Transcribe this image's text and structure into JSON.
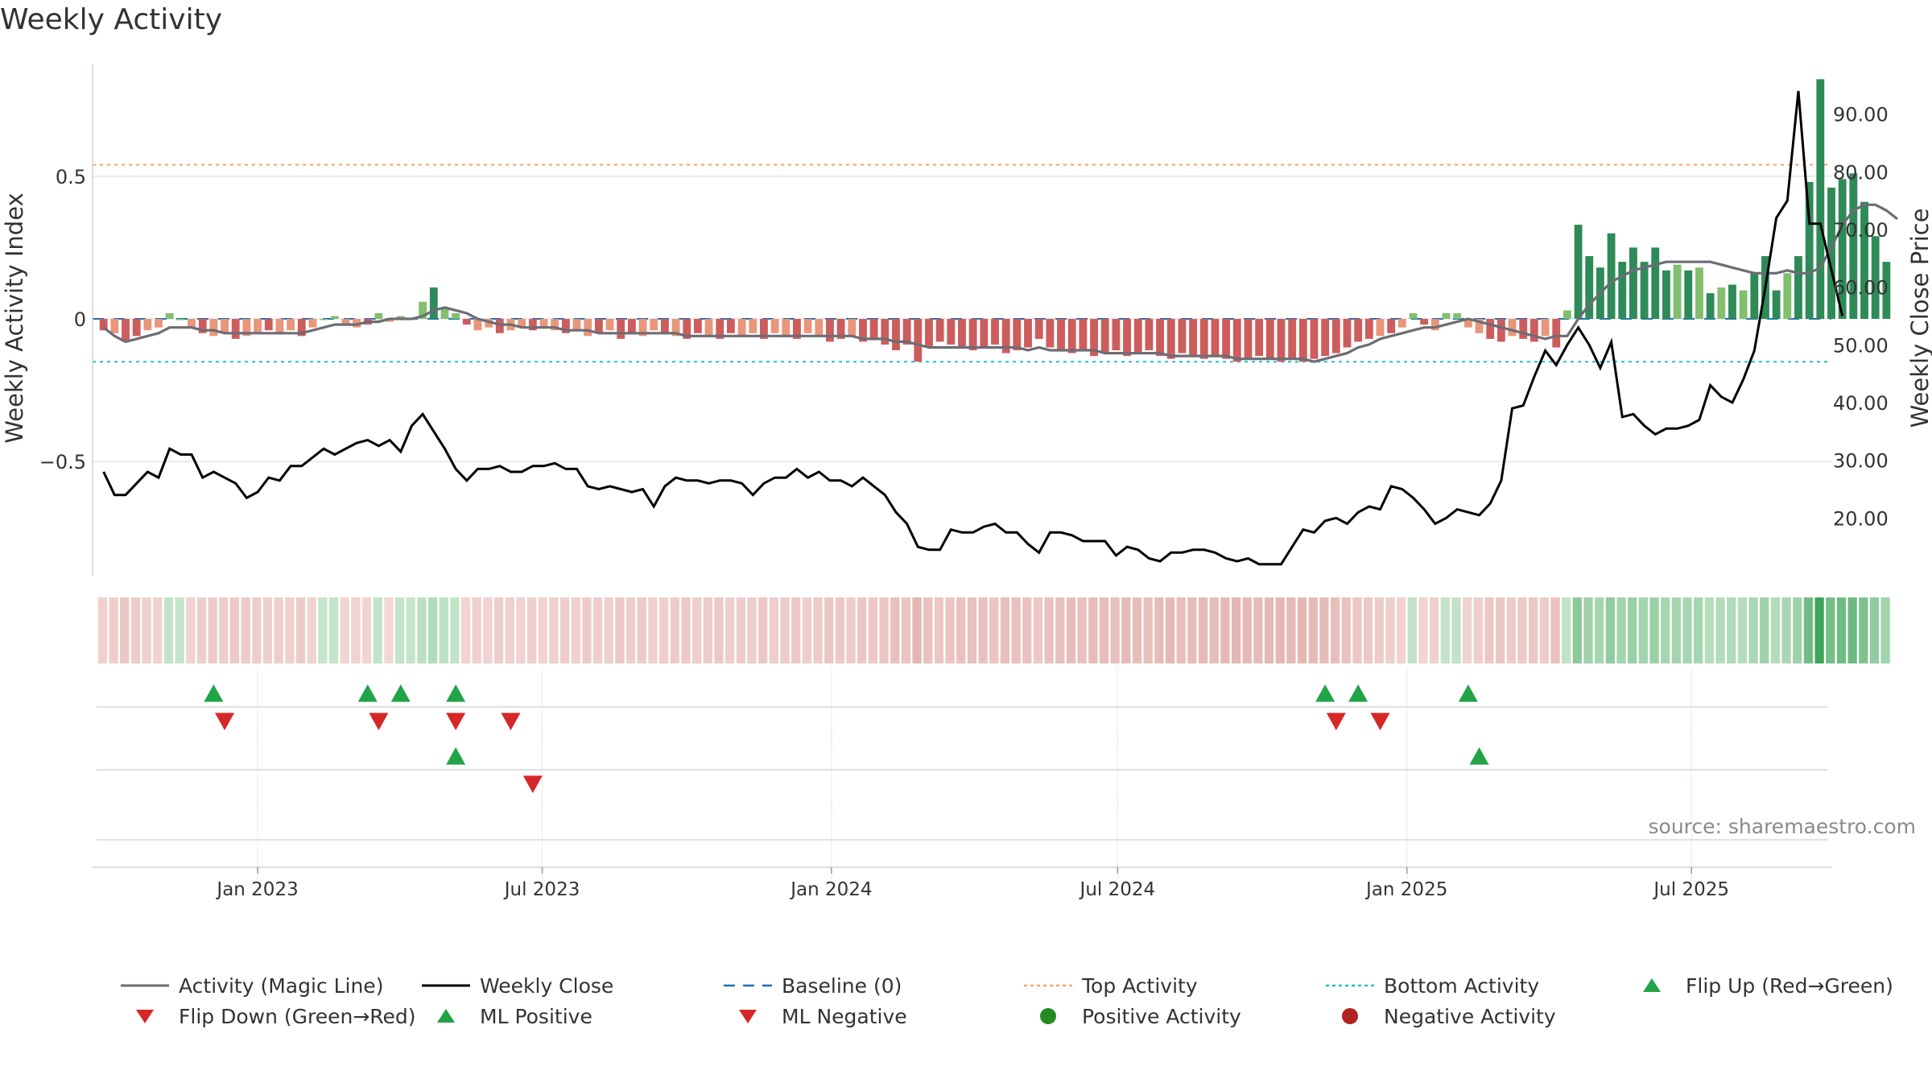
{
  "title": "Weekly Activity",
  "source": "source: sharemaestro.com",
  "chart_data": {
    "type": "bar",
    "title": "Weekly Activity",
    "ylabel_left": "Weekly Activity Index",
    "ylabel_right": "Weekly Close Price",
    "left_axis": {
      "ticks": [
        0.5,
        0,
        -0.5
      ],
      "tick_labels": [
        "0.5",
        "0",
        "−0.5"
      ],
      "range": [
        -0.9,
        0.92
      ]
    },
    "right_axis": {
      "ticks": [
        20,
        30,
        40,
        50,
        60,
        70,
        80,
        90
      ],
      "tick_labels": [
        "20.00",
        "30.00",
        "40.00",
        "50.00",
        "60.00",
        "70.00",
        "80.00",
        "90.00"
      ],
      "range": [
        10,
        100
      ]
    },
    "x_axis": {
      "ticks": [
        "2023-01-01",
        "2023-07-01",
        "2024-01-01",
        "2024-07-01",
        "2025-01-01",
        "2025-07-01"
      ],
      "tick_labels": [
        "Jan 2023",
        "Jul 2023",
        "Jan 2024",
        "Jul 2024",
        "Jan 2025",
        "Jul 2025"
      ],
      "range": [
        "2022-09-18",
        "2025-09-28"
      ]
    },
    "reference_lines": {
      "top_activity": 0.54,
      "bottom_activity": -0.15,
      "baseline": 0
    },
    "weeks_start": "2022-09-25",
    "series": [
      {
        "name": "Weekly Activity Index",
        "kind": "bar",
        "values": [
          -0.04,
          -0.05,
          -0.08,
          -0.06,
          -0.04,
          -0.03,
          0.02,
          0.0,
          -0.03,
          -0.05,
          -0.06,
          -0.05,
          -0.07,
          -0.06,
          -0.05,
          -0.04,
          -0.05,
          -0.04,
          -0.06,
          -0.03,
          0.0,
          0.01,
          -0.02,
          -0.03,
          -0.02,
          0.02,
          -0.01,
          0.01,
          0.0,
          0.06,
          0.11,
          0.04,
          0.02,
          -0.02,
          -0.04,
          -0.03,
          -0.05,
          -0.04,
          -0.03,
          -0.04,
          -0.03,
          -0.04,
          -0.05,
          -0.04,
          -0.06,
          -0.05,
          -0.04,
          -0.07,
          -0.05,
          -0.06,
          -0.04,
          -0.05,
          -0.06,
          -0.07,
          -0.05,
          -0.06,
          -0.07,
          -0.05,
          -0.06,
          -0.05,
          -0.07,
          -0.05,
          -0.06,
          -0.07,
          -0.05,
          -0.06,
          -0.08,
          -0.07,
          -0.06,
          -0.08,
          -0.07,
          -0.09,
          -0.11,
          -0.09,
          -0.15,
          -0.1,
          -0.08,
          -0.09,
          -0.1,
          -0.11,
          -0.1,
          -0.09,
          -0.12,
          -0.11,
          -0.1,
          -0.07,
          -0.1,
          -0.11,
          -0.12,
          -0.11,
          -0.13,
          -0.12,
          -0.11,
          -0.13,
          -0.12,
          -0.11,
          -0.13,
          -0.14,
          -0.12,
          -0.13,
          -0.14,
          -0.13,
          -0.14,
          -0.15,
          -0.14,
          -0.13,
          -0.14,
          -0.15,
          -0.14,
          -0.15,
          -0.14,
          -0.13,
          -0.12,
          -0.1,
          -0.08,
          -0.07,
          -0.06,
          -0.05,
          -0.03,
          0.02,
          -0.02,
          -0.04,
          0.02,
          0.02,
          -0.03,
          -0.05,
          -0.07,
          -0.08,
          -0.06,
          -0.07,
          -0.08,
          -0.06,
          -0.1,
          0.03,
          0.33,
          0.22,
          0.18,
          0.3,
          0.2,
          0.25,
          0.2,
          0.25,
          0.17,
          0.19,
          0.17,
          0.18,
          0.09,
          0.11,
          0.12,
          0.1,
          0.16,
          0.22,
          0.1,
          0.16,
          0.22,
          0.48,
          0.84,
          0.46,
          0.49,
          0.51,
          0.41,
          0.29,
          0.2
        ]
      },
      {
        "name": "Activity (Magic Line)",
        "kind": "line",
        "values": [
          -0.03,
          -0.06,
          -0.08,
          -0.07,
          -0.06,
          -0.05,
          -0.03,
          -0.03,
          -0.03,
          -0.04,
          -0.04,
          -0.05,
          -0.05,
          -0.05,
          -0.05,
          -0.05,
          -0.05,
          -0.05,
          -0.05,
          -0.04,
          -0.03,
          -0.02,
          -0.02,
          -0.02,
          -0.01,
          -0.01,
          0.0,
          0.0,
          0.0,
          0.01,
          0.03,
          0.04,
          0.03,
          0.02,
          0.0,
          -0.01,
          -0.02,
          -0.02,
          -0.03,
          -0.03,
          -0.03,
          -0.03,
          -0.04,
          -0.04,
          -0.04,
          -0.05,
          -0.05,
          -0.05,
          -0.05,
          -0.05,
          -0.05,
          -0.05,
          -0.05,
          -0.06,
          -0.06,
          -0.06,
          -0.06,
          -0.06,
          -0.06,
          -0.06,
          -0.06,
          -0.06,
          -0.06,
          -0.06,
          -0.06,
          -0.06,
          -0.06,
          -0.06,
          -0.06,
          -0.07,
          -0.07,
          -0.07,
          -0.08,
          -0.08,
          -0.09,
          -0.1,
          -0.1,
          -0.1,
          -0.1,
          -0.1,
          -0.1,
          -0.1,
          -0.1,
          -0.1,
          -0.11,
          -0.1,
          -0.11,
          -0.11,
          -0.11,
          -0.11,
          -0.11,
          -0.12,
          -0.12,
          -0.12,
          -0.12,
          -0.12,
          -0.12,
          -0.13,
          -0.13,
          -0.13,
          -0.13,
          -0.13,
          -0.13,
          -0.14,
          -0.14,
          -0.14,
          -0.14,
          -0.14,
          -0.14,
          -0.14,
          -0.15,
          -0.14,
          -0.13,
          -0.12,
          -0.1,
          -0.09,
          -0.07,
          -0.06,
          -0.05,
          -0.04,
          -0.03,
          -0.03,
          -0.02,
          -0.01,
          0.0,
          -0.01,
          -0.02,
          -0.03,
          -0.04,
          -0.05,
          -0.06,
          -0.07,
          -0.06,
          -0.06,
          0.0,
          0.05,
          0.09,
          0.13,
          0.15,
          0.17,
          0.18,
          0.19,
          0.2,
          0.2,
          0.2,
          0.2,
          0.2,
          0.19,
          0.18,
          0.17,
          0.16,
          0.16,
          0.16,
          0.17,
          0.16,
          0.16,
          0.18,
          0.25,
          0.33,
          0.38,
          0.4,
          0.4,
          0.38,
          0.35
        ]
      },
      {
        "name": "Weekly Close",
        "kind": "line",
        "axis": "right",
        "values": [
          28.0,
          24.0,
          24.0,
          26.0,
          28.0,
          27.0,
          32.0,
          31.0,
          31.0,
          27.0,
          28.0,
          27.0,
          26.0,
          23.5,
          24.5,
          27.0,
          26.5,
          29.0,
          29.0,
          30.5,
          32.0,
          31.0,
          32.0,
          33.0,
          33.5,
          32.5,
          33.5,
          31.5,
          36.0,
          38.0,
          35.0,
          32.0,
          28.5,
          26.5,
          28.5,
          28.5,
          29.0,
          28.0,
          28.0,
          29.0,
          29.0,
          29.5,
          28.5,
          28.5,
          25.5,
          25.0,
          25.5,
          25.0,
          24.5,
          25.0,
          22.0,
          25.5,
          27.0,
          26.5,
          26.5,
          26.0,
          26.5,
          26.5,
          26.0,
          24.0,
          26.0,
          27.0,
          27.0,
          28.5,
          27.0,
          28.0,
          26.5,
          26.5,
          25.5,
          27.0,
          25.5,
          24.0,
          21.0,
          19.0,
          15.0,
          14.5,
          14.5,
          18.0,
          17.5,
          17.5,
          18.5,
          19.0,
          17.5,
          17.5,
          15.5,
          14.0,
          17.5,
          17.5,
          17.0,
          16.0,
          16.0,
          16.0,
          13.5,
          15.0,
          14.5,
          13.0,
          12.5,
          14.0,
          14.0,
          14.5,
          14.5,
          14.0,
          13.0,
          12.5,
          13.0,
          12.0,
          12.0,
          12.0,
          15.0,
          18.0,
          17.5,
          19.5,
          20.0,
          19.0,
          21.0,
          22.0,
          21.5,
          25.5,
          25.0,
          23.5,
          21.5,
          19.0,
          20.0,
          21.5,
          21.0,
          20.5,
          22.5,
          26.5,
          39.0,
          39.5,
          44.5,
          49.0,
          46.5,
          50.0,
          53.0,
          50.0,
          46.0,
          50.5,
          37.5,
          38.0,
          36.0,
          34.5,
          35.5,
          35.5,
          36.0,
          37.0,
          43.0,
          41.0,
          40.0,
          44.0,
          49.0,
          60.0,
          72.0,
          75.0,
          94.0,
          71.0,
          71.0,
          63.0,
          55.0
        ]
      }
    ],
    "heatmap_strip": "weekly activity color strip",
    "markers": {
      "row1_flip_up": [
        "2022-12-04",
        "2023-03-12",
        "2023-04-02",
        "2023-05-07",
        "2024-11-10",
        "2024-12-01",
        "2025-02-09"
      ],
      "row1_flip_down": [
        "2022-12-11",
        "2023-03-19",
        "2023-05-07",
        "2023-06-11",
        "2024-11-17",
        "2024-12-15"
      ],
      "row2_ml_positive": [
        "2023-05-07",
        "2025-02-16"
      ],
      "row2_ml_negative": [
        "2023-06-25"
      ]
    },
    "legend_position": "bottom",
    "colors": {
      "bar_strong_green": "#2e8b57",
      "bar_light_green": "#82bf6e",
      "bar_strong_red": "#cd5c5c",
      "bar_light_red": "#e9967a",
      "magic_line": "#6c6c76",
      "close_line": "#000000",
      "baseline": "#1f6fb2",
      "top_activity": "#f4a460",
      "bottom_activity": "#20c0c8",
      "flip_up": "#21a348",
      "flip_down": "#d62728",
      "positive": "#238b22",
      "negative": "#b22222",
      "grid": "#e2e5e8"
    }
  },
  "legend": [
    {
      "label": "Activity (Magic Line)",
      "icon": "gray-line-icon"
    },
    {
      "label": "Weekly Close",
      "icon": "black-line-icon"
    },
    {
      "label": "Baseline (0)",
      "icon": "blue-dash-icon"
    },
    {
      "label": "Top Activity",
      "icon": "orange-dotted-icon"
    },
    {
      "label": "Bottom Activity",
      "icon": "cyan-dotted-icon"
    },
    {
      "label": "Flip Up (Red→Green)",
      "icon": "green-up-triangle-icon"
    },
    {
      "label": "Flip Down (Green→Red)",
      "icon": "red-down-triangle-icon"
    },
    {
      "label": "ML Positive",
      "icon": "green-up-triangle-icon"
    },
    {
      "label": "ML Negative",
      "icon": "red-down-triangle-icon"
    },
    {
      "label": "Positive Activity",
      "icon": "green-dot-icon"
    },
    {
      "label": "Negative Activity",
      "icon": "red-dot-icon"
    }
  ]
}
